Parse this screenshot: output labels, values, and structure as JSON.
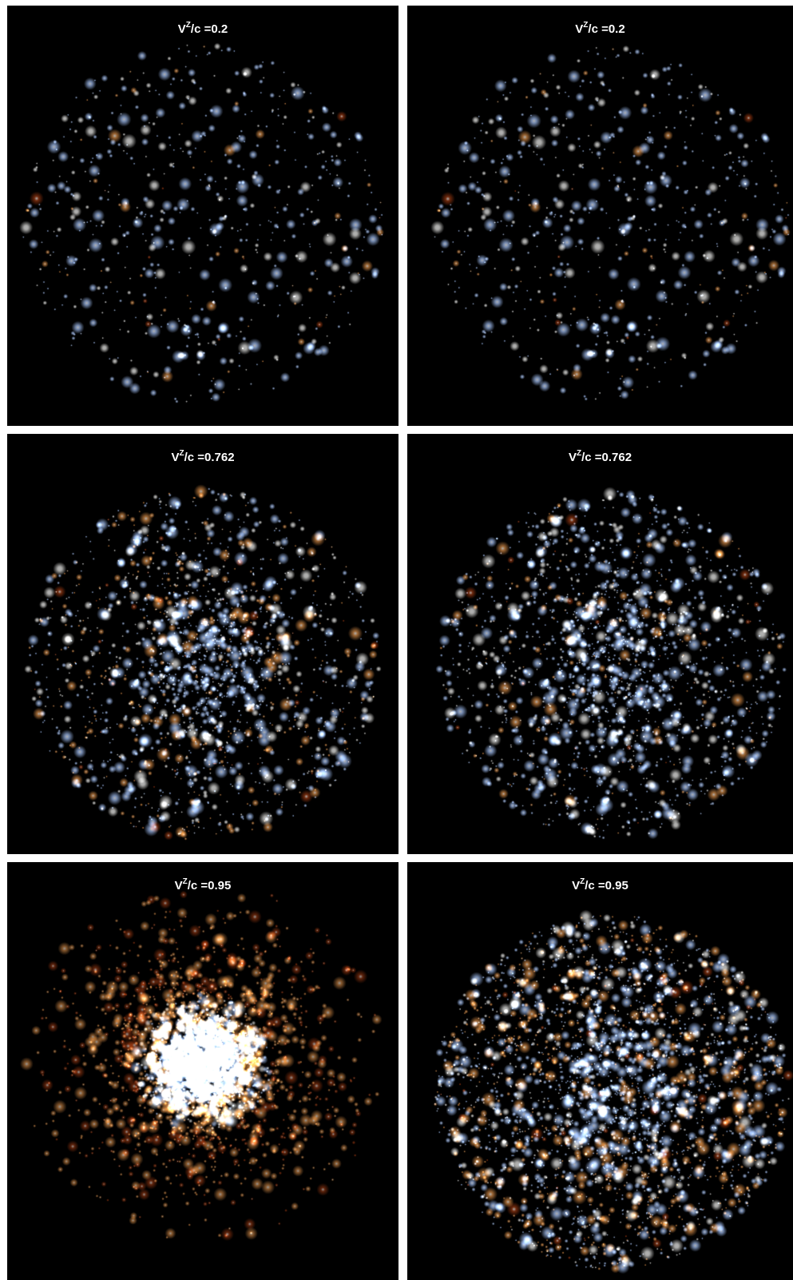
{
  "figure": {
    "background": "#000000",
    "separator_color": "#ffffff",
    "colors": {
      "blue_star": "#a9c8ff",
      "white_star": "#f2f2f0",
      "orange_star": "#e0924a",
      "red_star": "#9e3a12"
    },
    "label_symbol": "V",
    "label_superscript": "Z",
    "label_suffix": "/c =",
    "panels": [
      {
        "beta": "0.2"
      },
      {
        "beta": "0.2"
      },
      {
        "beta": "0.762"
      },
      {
        "beta": "0.762"
      },
      {
        "beta": "0.95"
      },
      {
        "beta": "0.95"
      }
    ]
  }
}
